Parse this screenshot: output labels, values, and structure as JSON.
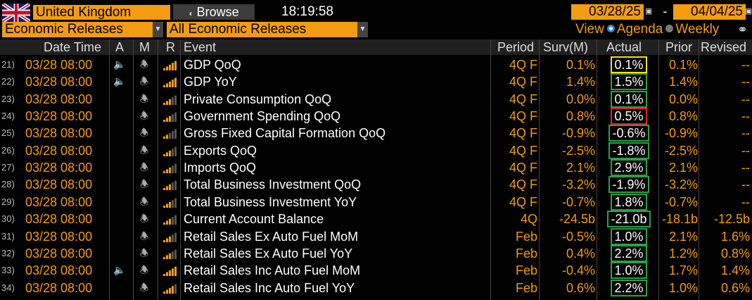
{
  "topbar": {
    "flag_icon": "uk-flag-icon",
    "country": "United Kingdom",
    "browse_label": "Browse",
    "time": "18:19:58",
    "start_date": "03/28/25",
    "end_date": "04/04/25",
    "date_separator": "-"
  },
  "filters": {
    "category": "Economic Releases",
    "subcategory": "All Economic Releases",
    "view_label": "View",
    "agenda_label": "Agenda",
    "weekly_label": "Weekly",
    "selected_view": "Agenda"
  },
  "columns": {
    "date_time": "Date Time",
    "a": "A",
    "m": "M",
    "r": "R",
    "event": "Event",
    "period": "Period",
    "surv": "Surv(M)",
    "actual": "Actual",
    "prior": "Prior",
    "revised": "Revised"
  },
  "colors": {
    "accent": "#f39c12",
    "beat": "#2ea043",
    "miss": "#e0202a",
    "inline": "#f1e40f"
  },
  "rows": [
    {
      "num": "21)",
      "dt": "03/28 08:00",
      "spk": true,
      "event": "GDP QoQ",
      "period": "4Q F",
      "surv": "0.1%",
      "actual": "0.1%",
      "box": "yellow",
      "prior": "0.1%",
      "revised": "--",
      "bars": 5
    },
    {
      "num": "22)",
      "dt": "03/28 08:00",
      "spk": true,
      "event": "GDP YoY",
      "period": "4Q F",
      "surv": "1.4%",
      "actual": "1.5%",
      "box": "green",
      "prior": "1.4%",
      "revised": "--",
      "bars": 5
    },
    {
      "num": "23)",
      "dt": "03/28 08:00",
      "spk": false,
      "event": "Private Consumption QoQ",
      "period": "4Q F",
      "surv": "0.0%",
      "actual": "0.1%",
      "box": "green",
      "prior": "0.0%",
      "revised": "--",
      "bars": 3
    },
    {
      "num": "24)",
      "dt": "03/28 08:00",
      "spk": false,
      "event": "Government Spending QoQ",
      "period": "4Q F",
      "surv": "0.8%",
      "actual": "0.5%",
      "box": "red",
      "prior": "0.8%",
      "revised": "--",
      "bars": 3
    },
    {
      "num": "25)",
      "dt": "03/28 08:00",
      "spk": false,
      "event": "Gross Fixed Capital Formation QoQ",
      "period": "4Q F",
      "surv": "-0.9%",
      "actual": "-0.6%",
      "box": "green",
      "prior": "-0.9%",
      "revised": "--",
      "bars": 2
    },
    {
      "num": "26)",
      "dt": "03/28 08:00",
      "spk": false,
      "event": "Exports QoQ",
      "period": "4Q F",
      "surv": "-2.5%",
      "actual": "-1.8%",
      "box": "green",
      "prior": "-2.5%",
      "revised": "--",
      "bars": 3
    },
    {
      "num": "27)",
      "dt": "03/28 08:00",
      "spk": false,
      "event": "Imports QoQ",
      "period": "4Q F",
      "surv": "2.1%",
      "actual": "2.9%",
      "box": "green",
      "prior": "2.1%",
      "revised": "--",
      "bars": 3
    },
    {
      "num": "28)",
      "dt": "03/28 08:00",
      "spk": false,
      "event": "Total Business Investment QoQ",
      "period": "4Q F",
      "surv": "-3.2%",
      "actual": "-1.9%",
      "box": "green",
      "prior": "-3.2%",
      "revised": "--",
      "bars": 3
    },
    {
      "num": "29)",
      "dt": "03/28 08:00",
      "spk": false,
      "event": "Total Business Investment YoY",
      "period": "4Q F",
      "surv": "-0.7%",
      "actual": "1.8%",
      "box": "green",
      "prior": "-0.7%",
      "revised": "--",
      "bars": 3
    },
    {
      "num": "30)",
      "dt": "03/28 08:00",
      "spk": false,
      "event": "Current Account Balance",
      "period": "4Q",
      "surv": "-24.5b",
      "actual": "-21.0b",
      "box": "green",
      "prior": "-18.1b",
      "revised": "-12.5b",
      "bars": 3
    },
    {
      "num": "31)",
      "dt": "03/28 08:00",
      "spk": false,
      "event": "Retail Sales Ex Auto Fuel MoM",
      "period": "Feb",
      "surv": "-0.5%",
      "actual": "1.0%",
      "box": "green",
      "prior": "2.1%",
      "revised": "1.6%",
      "bars": 3
    },
    {
      "num": "32)",
      "dt": "03/28 08:00",
      "spk": false,
      "event": "Retail Sales Ex Auto Fuel YoY",
      "period": "Feb",
      "surv": "0.4%",
      "actual": "2.2%",
      "box": "green",
      "prior": "1.2%",
      "revised": "0.8%",
      "bars": 3
    },
    {
      "num": "33)",
      "dt": "03/28 08:00",
      "spk": true,
      "event": "Retail Sales Inc Auto Fuel MoM",
      "period": "Feb",
      "surv": "-0.4%",
      "actual": "1.0%",
      "box": "green",
      "prior": "1.7%",
      "revised": "1.4%",
      "bars": 5
    },
    {
      "num": "34)",
      "dt": "03/28 08:00",
      "spk": false,
      "event": "Retail Sales Inc Auto Fuel YoY",
      "period": "Feb",
      "surv": "0.6%",
      "actual": "2.2%",
      "box": "green",
      "prior": "1.0%",
      "revised": "0.6%",
      "bars": 4
    }
  ]
}
